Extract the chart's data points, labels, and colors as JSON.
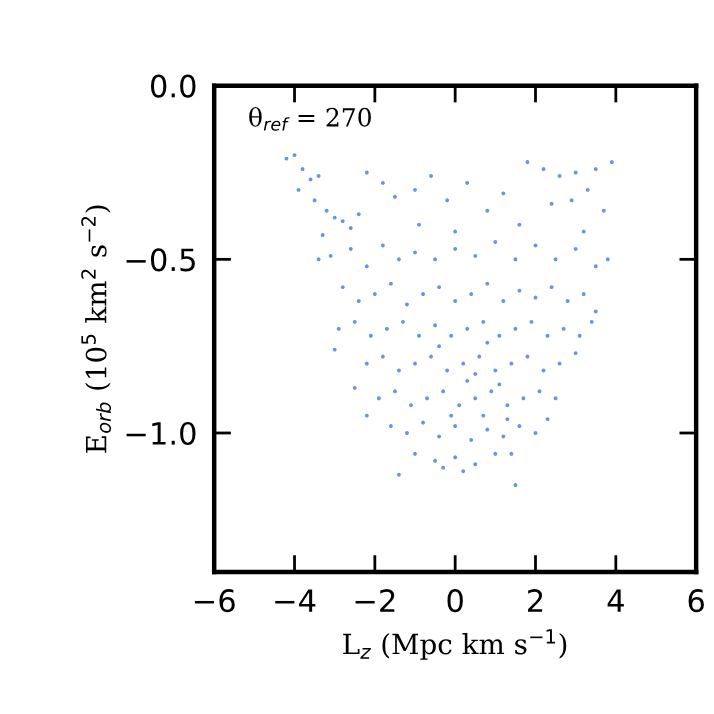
{
  "chart_data": {
    "type": "scatter",
    "xlabel": "L$_{z}$ (Mpc km s$^{−1}$)",
    "ylabel": "E$_{orb}$ (10$^{5}$ km$^{2}$ s$^{−2}$)",
    "annotations": [
      "θ$_{ref}$ = 270"
    ],
    "xlim": [
      -6,
      6
    ],
    "xticks": [
      {
        "value": -6,
        "label": "−6"
      },
      {
        "value": -4,
        "label": "−4"
      },
      {
        "value": -2,
        "label": "−2"
      },
      0,
      2,
      4,
      6
    ],
    "ylim": [
      -1.4,
      0.0
    ],
    "yticks": [
      {
        "value": -1.0,
        "label": "−1.0"
      },
      {
        "value": -0.5,
        "label": "−0.5"
      },
      {
        "value": 0.0,
        "label": "0.0"
      }
    ],
    "grid": false,
    "legend": false,
    "marker": "circle",
    "series": [
      {
        "color": "#6495ed",
        "x": [
          -4.2,
          -4.0,
          -3.8,
          -3.6,
          -3.9,
          -3.4,
          -3.5,
          -3.2,
          -3.0,
          -2.8,
          -2.6,
          -3.3,
          -2.4,
          -3.4,
          -3.1,
          -2.2,
          -1.8,
          -1.5,
          -1.0,
          -0.6,
          -0.2,
          0.3,
          0.8,
          1.2,
          1.8,
          2.2,
          2.6,
          3.0,
          3.5,
          3.9,
          3.3,
          2.9,
          2.4,
          3.7,
          1.6,
          -0.9,
          0.0,
          -2.6,
          -2.2,
          -1.8,
          -1.4,
          -1.0,
          -0.5,
          0.0,
          0.5,
          1.0,
          1.5,
          2.0,
          2.5,
          3.0,
          3.5,
          3.8,
          3.2,
          -2.8,
          -2.4,
          -2.0,
          -1.6,
          -1.2,
          -0.8,
          -0.4,
          0.0,
          0.4,
          0.8,
          1.2,
          1.6,
          2.0,
          2.4,
          2.8,
          3.2,
          3.5,
          -2.9,
          -2.5,
          -2.1,
          -1.7,
          -1.3,
          -0.9,
          -0.5,
          -0.1,
          0.3,
          0.7,
          1.1,
          1.5,
          1.9,
          2.3,
          2.7,
          3.1,
          3.4,
          -2.5,
          -2.2,
          -1.8,
          -1.4,
          -1.0,
          -0.6,
          -0.2,
          0.2,
          0.6,
          1.0,
          1.4,
          1.8,
          2.2,
          2.6,
          3.0,
          -3.0,
          -1.9,
          -1.5,
          -1.1,
          -0.7,
          -0.3,
          0.1,
          0.5,
          0.9,
          1.3,
          1.7,
          2.1,
          2.5,
          -2.2,
          -1.6,
          -1.2,
          -0.8,
          -0.4,
          0.0,
          0.4,
          0.8,
          1.2,
          1.6,
          2.0,
          2.3,
          -1.0,
          -0.5,
          0.0,
          0.5,
          1.0,
          1.4,
          -1.4,
          0.2,
          1.5,
          -0.3,
          0.3,
          0.7,
          1.1,
          -0.4,
          0.8,
          1.3,
          -0.1,
          0.5
        ],
        "values": [
          -0.21,
          -0.2,
          -0.24,
          -0.27,
          -0.3,
          -0.26,
          -0.33,
          -0.36,
          -0.38,
          -0.39,
          -0.41,
          -0.43,
          -0.37,
          -0.5,
          -0.49,
          -0.25,
          -0.28,
          -0.32,
          -0.3,
          -0.26,
          -0.33,
          -0.28,
          -0.36,
          -0.31,
          -0.22,
          -0.24,
          -0.26,
          -0.25,
          -0.24,
          -0.22,
          -0.3,
          -0.33,
          -0.34,
          -0.36,
          -0.4,
          -0.4,
          -0.42,
          -0.47,
          -0.52,
          -0.46,
          -0.5,
          -0.48,
          -0.5,
          -0.47,
          -0.49,
          -0.45,
          -0.5,
          -0.46,
          -0.5,
          -0.47,
          -0.52,
          -0.5,
          -0.42,
          -0.58,
          -0.62,
          -0.6,
          -0.57,
          -0.63,
          -0.6,
          -0.58,
          -0.62,
          -0.6,
          -0.57,
          -0.62,
          -0.59,
          -0.61,
          -0.58,
          -0.62,
          -0.6,
          -0.65,
          -0.7,
          -0.68,
          -0.72,
          -0.7,
          -0.68,
          -0.72,
          -0.69,
          -0.72,
          -0.7,
          -0.68,
          -0.72,
          -0.7,
          -0.68,
          -0.72,
          -0.7,
          -0.72,
          -0.68,
          -0.87,
          -0.8,
          -0.78,
          -0.82,
          -0.8,
          -0.78,
          -0.82,
          -0.8,
          -0.78,
          -0.82,
          -0.8,
          -0.78,
          -0.82,
          -0.8,
          -0.77,
          -0.76,
          -0.9,
          -0.88,
          -0.92,
          -0.9,
          -0.88,
          -0.92,
          -0.9,
          -0.88,
          -0.92,
          -0.9,
          -0.88,
          -0.9,
          -0.95,
          -0.98,
          -1.0,
          -0.97,
          -1.01,
          -0.98,
          -1.02,
          -0.99,
          -1.01,
          -0.98,
          -1.0,
          -0.96,
          -1.06,
          -1.08,
          -1.07,
          -1.09,
          -1.06,
          -1.06,
          -1.12,
          -1.11,
          -1.15,
          -1.1,
          -0.85,
          -0.95,
          -0.86,
          -0.75,
          -0.74,
          -0.96,
          -0.95,
          -0.83
        ]
      }
    ]
  }
}
